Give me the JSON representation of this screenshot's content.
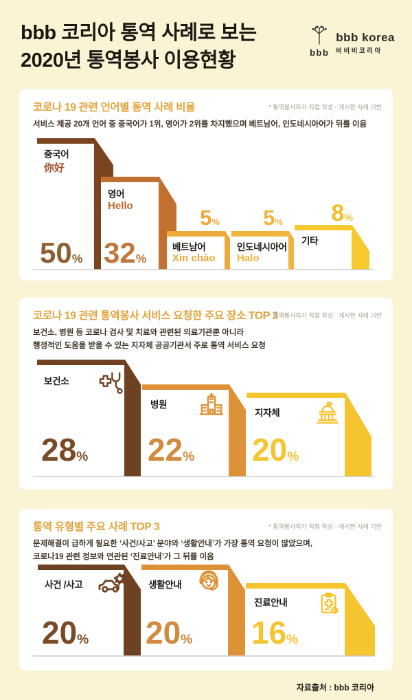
{
  "page": {
    "background": "#FAF3D4"
  },
  "header": {
    "title_line1": "bbb 코리아 통역 사례로 보는",
    "title_line2": "2020년 통역봉사 이용현황",
    "logo": {
      "bbb": "bbb",
      "name": "bbb korea",
      "korean": "비비비코리아"
    }
  },
  "footer": {
    "source": "자료출처 : bbb 코리아"
  },
  "chart_data": [
    {
      "type": "bar",
      "title": "코로나 19 관련 언어별 통역 사례 비율",
      "note": "* 통역봉사자가 직접 작성 · 게시한 사례 기반",
      "desc1": "서비스 제공 20개 언어 중 중국어가 1위, 영어가 2위를 차지했으며 베트남어, 인도네시아어가 뒤를 이음",
      "desc2": "",
      "unit": "%",
      "categories": [
        "중국어",
        "영어",
        "베트남어",
        "인도네시아어",
        "기타"
      ],
      "values": [
        50,
        32,
        5,
        5,
        8
      ],
      "bars": [
        {
          "label": "중국어",
          "sub": "你好",
          "value": 50,
          "color": "#7A441F",
          "sub_color": "#A5542D",
          "num_color": "#8D5F33"
        },
        {
          "label": "영어",
          "sub": "Hello",
          "value": 32,
          "color": "#C1702F",
          "sub_color": "#C06A2E",
          "num_color": "#C1773B"
        },
        {
          "label": "베트남어",
          "sub": "Xin chào",
          "value": 5,
          "color": "#ECAA3A",
          "sub_color": "#E8A93C",
          "num_color": "#ECAA3A"
        },
        {
          "label": "인도네시아어",
          "sub": "Halo",
          "value": 5,
          "color": "#EFB53E",
          "sub_color": "#EFB53E",
          "num_color": "#EFB53E"
        },
        {
          "label": "기타",
          "value": 8,
          "color": "#F7C92F",
          "num_color": "#F2C02C"
        }
      ]
    },
    {
      "type": "bar",
      "title": "코로나 19 관련 통역봉사 서비스 요청한 주요 장소 TOP 3",
      "note": "* 통역봉사자가 직접 작성 · 게시한 사례 기반",
      "desc1": "보건소, 병원 등 코로나 검사 및 치료와 관련된 의료기관뿐 아니라",
      "desc2": "행정적인 도움을 받을 수 있는 지자체 공공기관서 주로 통역 서비스 요청",
      "unit": "%",
      "categories": [
        "보건소",
        "병원",
        "지자체"
      ],
      "values": [
        28,
        22,
        20
      ],
      "bars": [
        {
          "label": "보건소",
          "icon": "stethoscope-cross-icon",
          "value": 28,
          "color": "#6E4120",
          "num_color": "#7A4A26"
        },
        {
          "label": "병원",
          "icon": "hospital-icon",
          "value": 22,
          "color": "#DE9238",
          "num_color": "#D18A3E"
        },
        {
          "label": "지자체",
          "icon": "government-building-icon",
          "value": 20,
          "color": "#F5C431",
          "num_color": "#F5C431"
        }
      ]
    },
    {
      "type": "bar",
      "title": "통역 유형별 주요 사례 TOP 3",
      "note": "* 통역봉사자가 직접 작성 · 게시한 사례 기반",
      "desc1": "문제해결이 급하게 필요한 ‘사건/사고’ 분야와 ‘생활안내’가 가장 통역 요청이 많았으며,",
      "desc2": "코로나19 관련 정보와 연관된 ‘진료안내’가 그 뒤를 이음",
      "unit": "%",
      "categories": [
        "사건 /사고",
        "생활안내",
        "진료안내"
      ],
      "values": [
        20,
        20,
        16
      ],
      "bars": [
        {
          "label": "사건 /사고",
          "icon": "car-accident-icon",
          "value": 20,
          "color": "#6E4120",
          "num_color": "#7A4A26"
        },
        {
          "label": "생활안내",
          "icon": "operator-woman-icon",
          "value": 20,
          "color": "#DE9238",
          "num_color": "#D18A3E"
        },
        {
          "label": "진료안내",
          "icon": "medical-clipboard-icon",
          "value": 16,
          "color": "#F5C431",
          "num_color": "#F5C431"
        }
      ]
    }
  ]
}
